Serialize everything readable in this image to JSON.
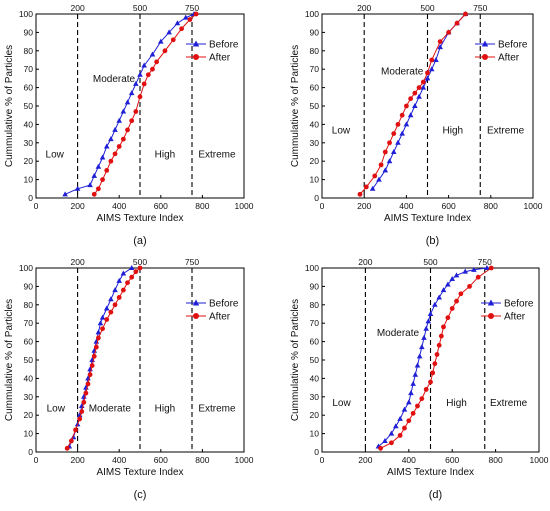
{
  "figure": {
    "colors": {
      "before": "#1f1fd6",
      "after": "#e01010",
      "axis": "#000000",
      "divider": "#000000"
    },
    "marker_shapes": {
      "before": "triangle",
      "after": "circle"
    }
  },
  "chart_data": [
    {
      "panel_label": "(a)",
      "type": "line",
      "xlabel": "AIMS Texture Index",
      "ylabel": "Cummulative % of  Particles",
      "xlim": [
        0,
        1000
      ],
      "ylim": [
        0,
        100
      ],
      "xticks": [
        0,
        200,
        400,
        600,
        800,
        1000
      ],
      "yticks": [
        0,
        10,
        20,
        30,
        40,
        50,
        60,
        70,
        80,
        90,
        100
      ],
      "thresholds": [
        200,
        500,
        750
      ],
      "zones": [
        {
          "label": "Low",
          "x": 90,
          "y": 22
        },
        {
          "label": "Moderate",
          "x": 375,
          "y": 63
        },
        {
          "label": "High",
          "x": 620,
          "y": 22
        },
        {
          "label": "Extreme",
          "x": 870,
          "y": 22
        }
      ],
      "legend": {
        "position": "top-right"
      },
      "series": [
        {
          "name": "Before",
          "marker": "triangle",
          "x": [
            140,
            200,
            260,
            280,
            300,
            320,
            340,
            360,
            380,
            400,
            420,
            440,
            460,
            480,
            500,
            520,
            560,
            600,
            640,
            680,
            720,
            760
          ],
          "y": [
            2,
            5,
            7,
            12,
            17,
            22,
            28,
            32,
            37,
            42,
            47,
            52,
            57,
            62,
            67,
            72,
            78,
            85,
            90,
            95,
            98,
            100
          ]
        },
        {
          "name": "After",
          "marker": "circle",
          "x": [
            280,
            300,
            320,
            340,
            360,
            380,
            400,
            420,
            440,
            460,
            480,
            500,
            520,
            540,
            560,
            580,
            620,
            660,
            700,
            740,
            770
          ],
          "y": [
            2,
            5,
            10,
            15,
            20,
            24,
            28,
            32,
            37,
            42,
            47,
            55,
            62,
            67,
            70,
            74,
            80,
            86,
            92,
            97,
            100
          ]
        }
      ]
    },
    {
      "panel_label": "(b)",
      "type": "line",
      "xlabel": "AIMS Texture Index",
      "ylabel": "Cummulative % of  Particles",
      "xlim": [
        0,
        1000
      ],
      "ylim": [
        0,
        100
      ],
      "xticks": [
        0,
        200,
        400,
        600,
        800,
        1000
      ],
      "yticks": [
        0,
        10,
        20,
        30,
        40,
        50,
        60,
        70,
        80,
        90,
        100
      ],
      "thresholds": [
        200,
        500,
        750
      ],
      "zones": [
        {
          "label": "Low",
          "x": 90,
          "y": 35
        },
        {
          "label": "Moderate",
          "x": 380,
          "y": 67
        },
        {
          "label": "High",
          "x": 620,
          "y": 35
        },
        {
          "label": "Extreme",
          "x": 870,
          "y": 35
        }
      ],
      "legend": {
        "position": "top-right"
      },
      "series": [
        {
          "name": "Before",
          "marker": "triangle",
          "x": [
            240,
            270,
            300,
            320,
            340,
            360,
            380,
            400,
            420,
            440,
            460,
            480,
            500,
            520,
            540,
            560,
            600,
            640,
            680
          ],
          "y": [
            5,
            10,
            15,
            20,
            25,
            30,
            35,
            40,
            45,
            50,
            55,
            60,
            65,
            70,
            75,
            82,
            90,
            95,
            100
          ]
        },
        {
          "name": "After",
          "marker": "circle",
          "x": [
            180,
            210,
            250,
            280,
            300,
            320,
            340,
            360,
            380,
            400,
            420,
            440,
            460,
            480,
            500,
            520,
            560,
            600,
            640,
            680
          ],
          "y": [
            2,
            6,
            12,
            18,
            25,
            30,
            35,
            40,
            45,
            50,
            54,
            57,
            60,
            63,
            68,
            75,
            85,
            90,
            95,
            100
          ]
        }
      ]
    },
    {
      "panel_label": "(c)",
      "type": "line",
      "xlabel": "AIMS Texture Index",
      "ylabel": "Cummulative % of  Particles",
      "xlim": [
        0,
        1000
      ],
      "ylim": [
        0,
        100
      ],
      "xticks": [
        0,
        200,
        400,
        600,
        800,
        1000
      ],
      "yticks": [
        0,
        10,
        20,
        30,
        40,
        50,
        60,
        70,
        80,
        90,
        100
      ],
      "thresholds": [
        200,
        500,
        750
      ],
      "zones": [
        {
          "label": "Low",
          "x": 95,
          "y": 22
        },
        {
          "label": "Moderate",
          "x": 355,
          "y": 22
        },
        {
          "label": "High",
          "x": 620,
          "y": 22
        },
        {
          "label": "Extreme",
          "x": 870,
          "y": 22
        }
      ],
      "legend": {
        "position": "right"
      },
      "series": [
        {
          "name": "Before",
          "marker": "triangle",
          "x": [
            160,
            180,
            200,
            210,
            220,
            230,
            240,
            250,
            260,
            270,
            280,
            290,
            300,
            310,
            320,
            340,
            360,
            380,
            400,
            420,
            460
          ],
          "y": [
            3,
            8,
            15,
            20,
            25,
            30,
            35,
            40,
            45,
            50,
            55,
            60,
            65,
            70,
            73,
            78,
            83,
            88,
            93,
            97,
            100
          ]
        },
        {
          "name": "After",
          "marker": "circle",
          "x": [
            150,
            170,
            190,
            210,
            220,
            230,
            240,
            250,
            260,
            270,
            280,
            290,
            300,
            320,
            340,
            360,
            380,
            400,
            420,
            440,
            460,
            480,
            500
          ],
          "y": [
            2,
            6,
            12,
            18,
            22,
            27,
            32,
            37,
            42,
            47,
            52,
            57,
            62,
            67,
            72,
            76,
            80,
            84,
            88,
            92,
            95,
            98,
            100
          ]
        }
      ]
    },
    {
      "panel_label": "(d)",
      "type": "line",
      "xlabel": "AIMS Texture Index",
      "ylabel": "Cummulative % of  Particles",
      "xlim": [
        0,
        1000
      ],
      "ylim": [
        0,
        100
      ],
      "xticks": [
        0,
        200,
        400,
        600,
        800,
        1000
      ],
      "yticks": [
        0,
        10,
        20,
        30,
        40,
        50,
        60,
        70,
        80,
        90,
        100
      ],
      "thresholds": [
        200,
        500,
        750
      ],
      "zones": [
        {
          "label": "Low",
          "x": 90,
          "y": 25
        },
        {
          "label": "Moderate",
          "x": 350,
          "y": 63
        },
        {
          "label": "High",
          "x": 620,
          "y": 25
        },
        {
          "label": "Extreme",
          "x": 860,
          "y": 25
        }
      ],
      "legend": {
        "position": "right"
      },
      "series": [
        {
          "name": "Before",
          "marker": "triangle",
          "x": [
            260,
            290,
            320,
            340,
            360,
            380,
            400,
            410,
            420,
            430,
            440,
            450,
            460,
            470,
            480,
            490,
            500,
            520,
            540,
            560,
            580,
            600,
            620,
            660,
            700,
            760
          ],
          "y": [
            3,
            6,
            10,
            14,
            18,
            23,
            27,
            32,
            37,
            42,
            47,
            52,
            57,
            62,
            67,
            71,
            75,
            80,
            84,
            88,
            91,
            94,
            96,
            98,
            99,
            100
          ]
        },
        {
          "name": "After",
          "marker": "circle",
          "x": [
            270,
            320,
            360,
            380,
            400,
            420,
            440,
            460,
            480,
            500,
            510,
            520,
            530,
            540,
            550,
            560,
            580,
            600,
            620,
            640,
            680,
            720,
            780
          ],
          "y": [
            2,
            5,
            9,
            13,
            17,
            21,
            25,
            29,
            34,
            38,
            43,
            48,
            53,
            58,
            63,
            68,
            73,
            78,
            82,
            86,
            90,
            95,
            100
          ]
        }
      ]
    }
  ]
}
